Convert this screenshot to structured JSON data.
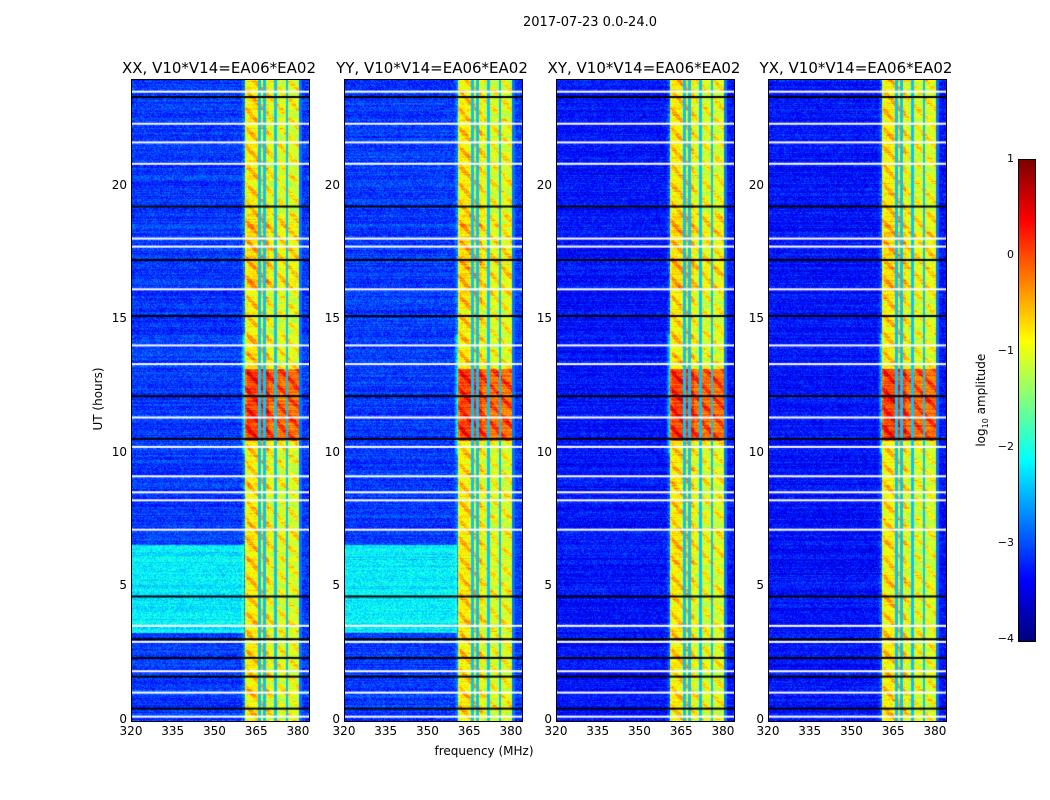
{
  "suptitle": "2017-07-23 0.0-24.0",
  "chart_data": {
    "type": "heatmap",
    "panels": [
      {
        "title": "XX, V10*V14=EA06*EA02",
        "polarization": "XX",
        "background_level": -3.1,
        "low_freq_excess": true
      },
      {
        "title": "YY, V10*V14=EA06*EA02",
        "polarization": "YY",
        "background_level": -3.1,
        "low_freq_excess": true
      },
      {
        "title": "XY, V10*V14=EA06*EA02",
        "polarization": "XY",
        "background_level": -3.3,
        "low_freq_excess": false
      },
      {
        "title": "YX, V10*V14=EA06*EA02",
        "polarization": "YX",
        "background_level": -3.3,
        "low_freq_excess": false
      }
    ],
    "xlabel": "frequency (MHz)",
    "ylabel": "UT (hours)",
    "xlim": [
      320,
      383.6
    ],
    "ylim": [
      0,
      24
    ],
    "xticks": [
      "320",
      "335",
      "350",
      "365",
      "380"
    ],
    "yticks": [
      "0",
      "5",
      "10",
      "15",
      "20"
    ],
    "bright_band_mhz": [
      360.5,
      380
    ],
    "band_peak_hours": [
      10.5,
      13.2
    ],
    "flagged_black_hours": [
      0.5,
      1.7,
      2.4,
      3.1,
      4.7,
      10.6,
      12.2,
      15.2,
      17.3,
      19.3,
      23.4
    ],
    "flagged_white_hours": [
      0.2,
      1.1,
      1.9,
      3.0,
      3.6,
      7.2,
      8.3,
      8.6,
      9.2,
      10.3,
      11.4,
      13.4,
      14.1,
      16.2,
      17.8,
      18.1,
      20.9,
      21.7,
      22.4,
      23.6
    ],
    "colorbar": {
      "label": "log10 amplitude",
      "label_main": "log",
      "label_sub": "10",
      "label_rest": " amplitude",
      "range": [
        -4,
        1
      ],
      "ticks": [
        "1",
        "0",
        "−1",
        "−2",
        "−3",
        "−4"
      ],
      "colormap": "jet"
    }
  }
}
